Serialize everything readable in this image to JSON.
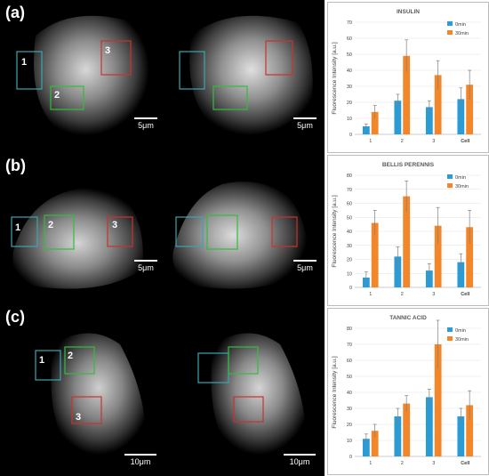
{
  "panels": [
    {
      "letter": "(a)",
      "scalebar": "5μm",
      "regions": [
        "1",
        "2",
        "3"
      ]
    },
    {
      "letter": "(b)",
      "scalebar": "5μm",
      "regions": [
        "1",
        "2",
        "3"
      ]
    },
    {
      "letter": "(c)",
      "scalebar": "10μm",
      "regions": [
        "1",
        "2",
        "3"
      ]
    }
  ],
  "colors": {
    "region1": "#3aa6b0",
    "region2": "#2fbf3a",
    "region3": "#c8322d",
    "series0": "#2b9bd6",
    "series30": "#f4862a"
  },
  "chart_data": [
    {
      "type": "bar",
      "title": "INSULIN",
      "ylabel": "Fluorescence Intensity [a.u.]",
      "categories": [
        "1",
        "2",
        "3",
        "Cell"
      ],
      "ylim": [
        0,
        70
      ],
      "yticks": [
        0,
        10,
        20,
        30,
        40,
        50,
        60,
        70
      ],
      "series": [
        {
          "name": "0min",
          "values": [
            5,
            21,
            17,
            22
          ],
          "errors": [
            1.5,
            4,
            4,
            7
          ]
        },
        {
          "name": "30min",
          "values": [
            14,
            49,
            37,
            31
          ],
          "errors": [
            4,
            10,
            9,
            9
          ]
        }
      ],
      "legend_position": "top-right"
    },
    {
      "type": "bar",
      "title": "BELLIS PERENNIS",
      "ylabel": "Fluorescence Intensity [a.u.]",
      "categories": [
        "1",
        "2",
        "3",
        "Cell"
      ],
      "ylim": [
        0,
        80
      ],
      "yticks": [
        0,
        10,
        20,
        30,
        40,
        50,
        60,
        70,
        80
      ],
      "series": [
        {
          "name": "0min",
          "values": [
            7,
            22,
            12,
            18
          ],
          "errors": [
            4,
            7,
            5,
            6
          ]
        },
        {
          "name": "30min",
          "values": [
            46,
            65,
            44,
            43
          ],
          "errors": [
            9,
            11,
            13,
            12
          ]
        }
      ],
      "legend_position": "top-right"
    },
    {
      "type": "bar",
      "title": "TANNIC ACID",
      "ylabel": "Fluorescence Intensity [a.u.]",
      "categories": [
        "1",
        "2",
        "3",
        "Cell"
      ],
      "ylim": [
        0,
        80
      ],
      "yticks": [
        0,
        10,
        20,
        30,
        40,
        50,
        60,
        70,
        80
      ],
      "series": [
        {
          "name": "0min",
          "values": [
            11,
            25,
            37,
            25
          ],
          "errors": [
            3,
            5,
            5,
            5
          ]
        },
        {
          "name": "30min",
          "values": [
            16,
            33,
            70,
            32
          ],
          "errors": [
            4,
            5,
            15,
            9
          ]
        }
      ],
      "legend_position": "top-right"
    }
  ]
}
